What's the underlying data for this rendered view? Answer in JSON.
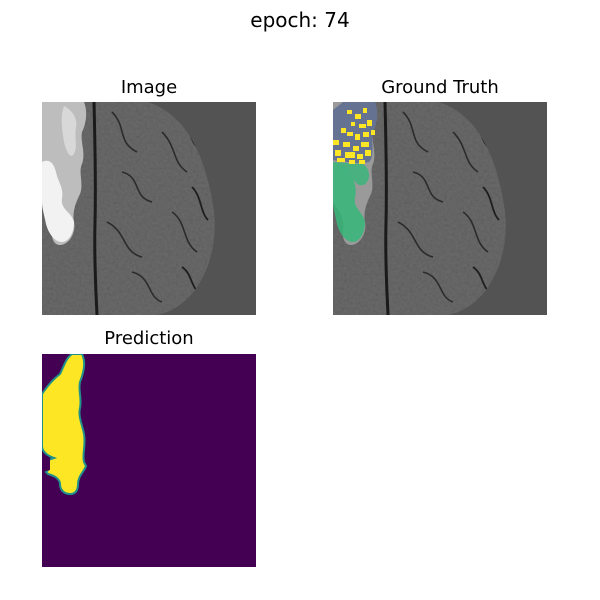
{
  "figure": {
    "suptitle": "epoch: 74"
  },
  "panels": [
    {
      "title": "Image"
    },
    {
      "title": "Ground Truth"
    },
    {
      "title": "Prediction"
    }
  ],
  "colors": {
    "background_gray": "#535353",
    "brain_dark": "#2a2a2a",
    "brain_mid": "#6e6e6e",
    "lesion_bright": "#f0f0f0",
    "overlay_green": "#35b779",
    "overlay_yellow": "#fde725",
    "overlay_blue": "#3b528b",
    "prediction_background": "#440154",
    "prediction_mask": "#fde725"
  }
}
